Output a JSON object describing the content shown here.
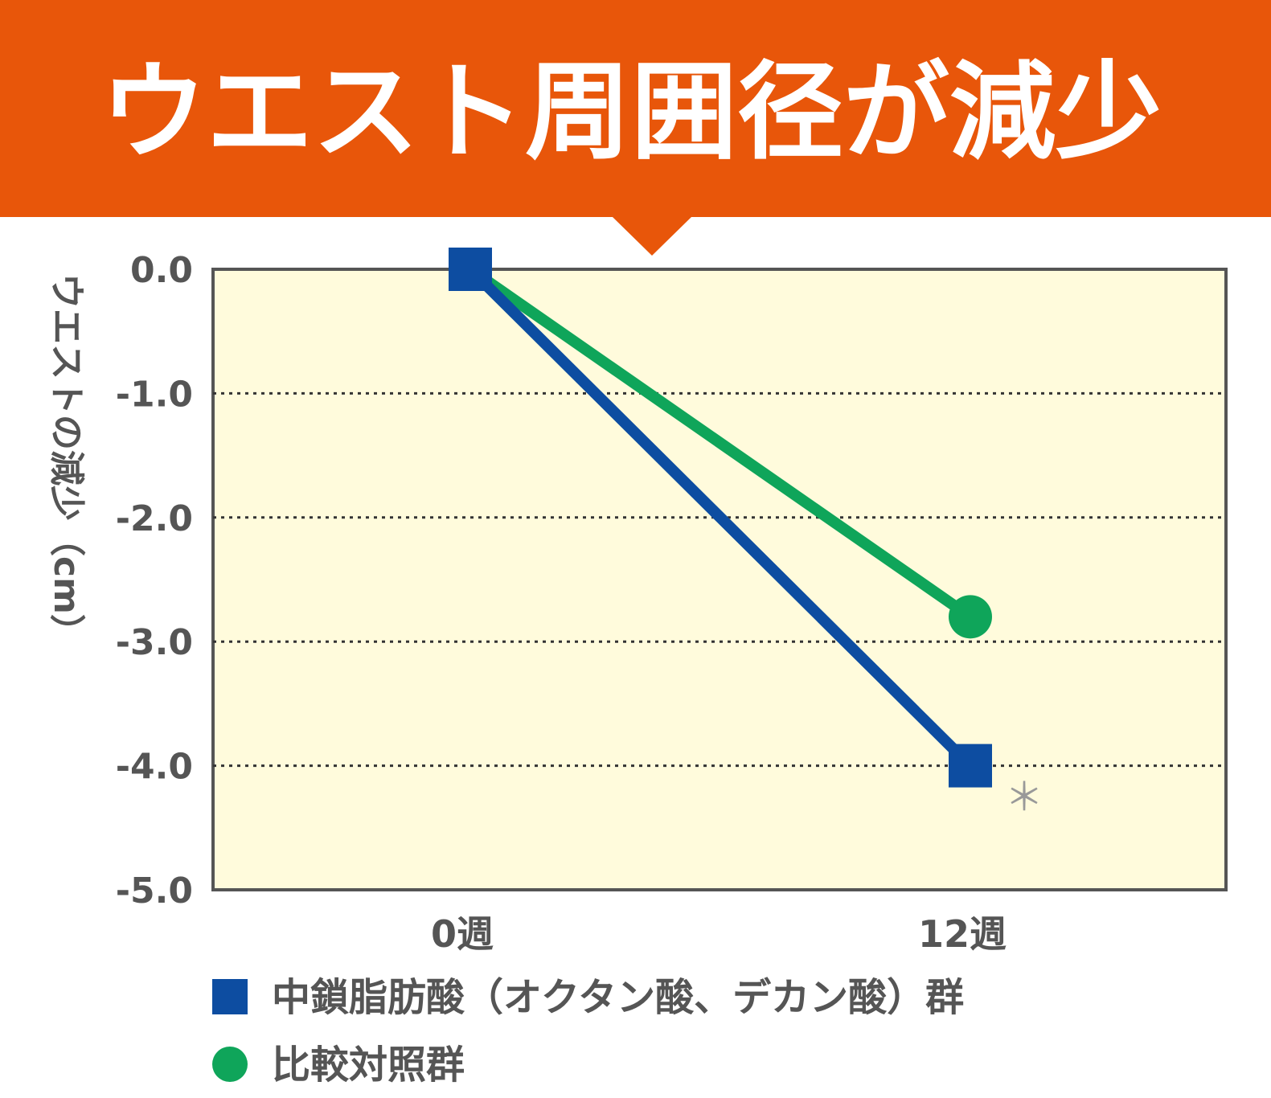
{
  "chart_data": {
    "type": "line",
    "title": "ウエスト周囲径が減少",
    "ylabel": "ウエストの減少（cm）",
    "xlabel": "",
    "categories": [
      "0週",
      "12週"
    ],
    "yticks": [
      "0.0",
      "-1.0",
      "-2.0",
      "-3.0",
      "-4.0",
      "-5.0"
    ],
    "ylim": [
      -5.0,
      0.0
    ],
    "grid": "horizontal dotted",
    "series": [
      {
        "name": "中鎖脂肪酸（オクタン酸、デカン酸）群",
        "values": [
          0.0,
          -4.0
        ],
        "marker": "square",
        "color": "#0D4DA1"
      },
      {
        "name": "比較対照群",
        "values": [
          0.0,
          -2.8
        ],
        "marker": "circle",
        "color": "#0FA55A"
      }
    ],
    "annotations": [
      {
        "text": "＊",
        "near": "中鎖脂肪酸 12週"
      }
    ],
    "legend_position": "bottom-left",
    "colors": {
      "header": "#E8560A",
      "plot_bg": "#FFFBDC"
    }
  }
}
